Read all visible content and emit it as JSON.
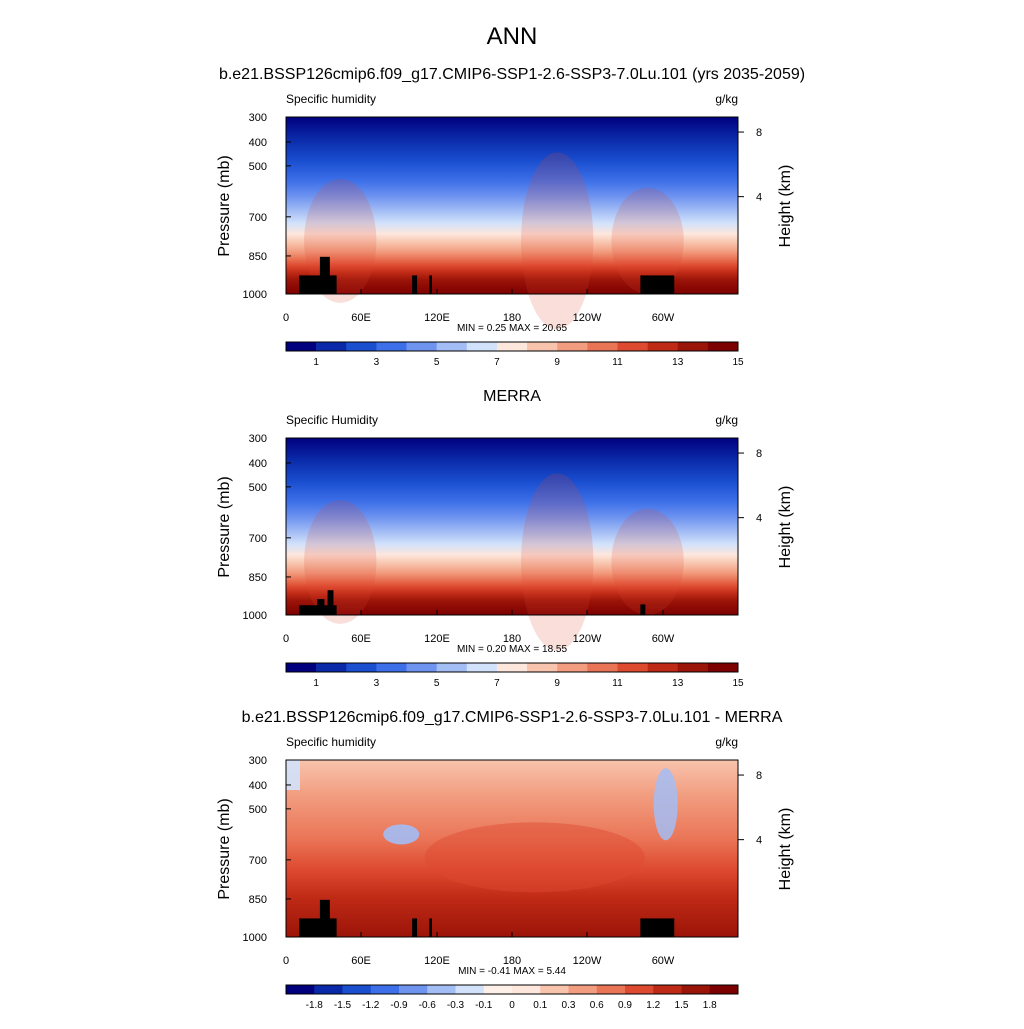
{
  "page": {
    "title": "ANN",
    "subtitle": "b.e21.BSSP126cmip6.f09_g17.CMIP6-SSP1-2.6-SSP3-7.0Lu.101 (yrs 2035-2059)"
  },
  "chart_data": [
    {
      "type": "heatmap",
      "panel_title": "",
      "variable": "Specific humidity",
      "units": "g/kg",
      "ylabel": "Pressure (mb)",
      "y2label": "Height (km)",
      "x_ticks": [
        "0",
        "60E",
        "120E",
        "180",
        "120W",
        "60W"
      ],
      "y_ticks": [
        "300",
        "400",
        "500",
        "700",
        "850",
        "1000"
      ],
      "y2_ticks": [
        "8",
        "4"
      ],
      "stats": {
        "min_label": "MIN =",
        "min": "0.25",
        "max_label": "MAX =",
        "max": "20.65"
      },
      "colorbar_labels": [
        "1",
        "3",
        "5",
        "7",
        "9",
        "11",
        "13",
        "15"
      ],
      "colorbar_colors": [
        "#00007f",
        "#0a29a8",
        "#1a4fd0",
        "#3d6fe8",
        "#6f94f0",
        "#a3bdf5",
        "#d2e2fb",
        "#fde6dc",
        "#f8c4ad",
        "#f29d80",
        "#ea7456",
        "#dd4a30",
        "#bf2a16",
        "#9b1408",
        "#7d0000"
      ]
    },
    {
      "type": "heatmap",
      "panel_title": "MERRA",
      "variable": "Specific Humidity",
      "units": "g/kg",
      "ylabel": "Pressure (mb)",
      "y2label": "Height (km)",
      "x_ticks": [
        "0",
        "60E",
        "120E",
        "180",
        "120W",
        "60W"
      ],
      "y_ticks": [
        "300",
        "400",
        "500",
        "700",
        "850",
        "1000"
      ],
      "y2_ticks": [
        "8",
        "4"
      ],
      "stats": {
        "min_label": "MIN =",
        "min": "0.20",
        "max_label": "MAX =",
        "max": "18.55"
      },
      "colorbar_labels": [
        "1",
        "3",
        "5",
        "7",
        "9",
        "11",
        "13",
        "15"
      ],
      "colorbar_colors": [
        "#00007f",
        "#0a29a8",
        "#1a4fd0",
        "#3d6fe8",
        "#6f94f0",
        "#a3bdf5",
        "#d2e2fb",
        "#fde6dc",
        "#f8c4ad",
        "#f29d80",
        "#ea7456",
        "#dd4a30",
        "#bf2a16",
        "#9b1408",
        "#7d0000"
      ]
    },
    {
      "type": "heatmap",
      "panel_title": "b.e21.BSSP126cmip6.f09_g17.CMIP6-SSP1-2.6-SSP3-7.0Lu.101 - MERRA",
      "variable": "Specific humidity",
      "units": "g/kg",
      "ylabel": "Pressure (mb)",
      "y2label": "Height (km)",
      "x_ticks": [
        "0",
        "60E",
        "120E",
        "180",
        "120W",
        "60W"
      ],
      "y_ticks": [
        "300",
        "400",
        "500",
        "700",
        "850",
        "1000"
      ],
      "y2_ticks": [
        "8",
        "4"
      ],
      "stats": {
        "min_label": "MIN =",
        "min": "-0.41",
        "max_label": "MAX =",
        "max": "5.44"
      },
      "colorbar_labels": [
        "-1.8",
        "-1.5",
        "-1.2",
        "-0.9",
        "-0.6",
        "-0.3",
        "-0.1",
        "0",
        "0.1",
        "0.3",
        "0.6",
        "0.9",
        "1.2",
        "1.5",
        "1.8"
      ],
      "colorbar_colors": [
        "#00007f",
        "#0a29a8",
        "#1a4fd0",
        "#3d6fe8",
        "#6f94f0",
        "#a3bdf5",
        "#d2e2fb",
        "#fdf0e8",
        "#fde6dc",
        "#f8c4ad",
        "#f29d80",
        "#ea7456",
        "#dd4a30",
        "#bf2a16",
        "#9b1408",
        "#7d0000"
      ]
    }
  ]
}
